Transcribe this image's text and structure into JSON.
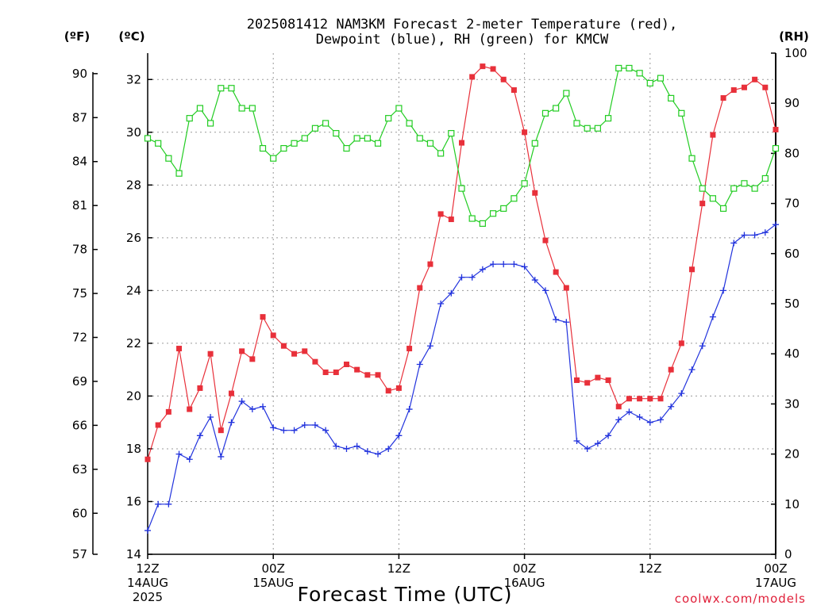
{
  "chart_data": {
    "type": "line",
    "title": [
      "2025081412 NAM3KM Forecast 2-meter Temperature (red),",
      "Dewpoint (blue), RH (green) for KMCW"
    ],
    "xlabel": "Forecast Time (UTC)",
    "credit": "coolwx.com/models",
    "units": {
      "fahrenheit": "(ºF)",
      "celsius": "(ºC)",
      "rh": "(RH)"
    },
    "x_ticks": [
      {
        "hour": 0,
        "lines": [
          "12Z",
          "14AUG",
          "2025"
        ]
      },
      {
        "hour": 12,
        "lines": [
          "00Z",
          "15AUG"
        ]
      },
      {
        "hour": 24,
        "lines": [
          "12Z"
        ]
      },
      {
        "hour": 36,
        "lines": [
          "00Z",
          "16AUG"
        ]
      },
      {
        "hour": 48,
        "lines": [
          "12Z"
        ]
      },
      {
        "hour": 60,
        "lines": [
          "00Z",
          "17AUG"
        ]
      }
    ],
    "x_range": [
      0,
      60
    ],
    "y_celsius": {
      "range": [
        14,
        33
      ],
      "ticks": [
        "14",
        "16",
        "18",
        "20",
        "22",
        "24",
        "26",
        "28",
        "30",
        "32"
      ]
    },
    "y_fahrenheit": {
      "ticks": [
        "57",
        "60",
        "63",
        "66",
        "69",
        "72",
        "75",
        "78",
        "81",
        "84",
        "87",
        "90"
      ]
    },
    "y_rh": {
      "range": [
        0,
        100
      ],
      "ticks": [
        "0",
        "10",
        "20",
        "30",
        "40",
        "50",
        "60",
        "70",
        "80",
        "90",
        "100"
      ]
    },
    "grid": true,
    "colors": {
      "temperature": "#e8303a",
      "dewpoint": "#2233dd",
      "rh": "#22cc22"
    },
    "series": [
      {
        "name": "Temperature",
        "axis": "celsius",
        "marker": "filled-square",
        "values": [
          17.6,
          18.9,
          19.4,
          21.8,
          19.5,
          20.3,
          21.6,
          18.7,
          20.1,
          21.7,
          21.4,
          23.0,
          22.3,
          21.9,
          21.6,
          21.7,
          21.3,
          20.9,
          20.9,
          21.2,
          21.0,
          20.8,
          20.8,
          20.2,
          20.3,
          21.8,
          24.1,
          25.0,
          26.9,
          26.7,
          29.6,
          32.1,
          32.5,
          32.4,
          32.0,
          31.6,
          30.0,
          27.7,
          25.9,
          24.7,
          24.1,
          20.6,
          20.5,
          20.7,
          20.6,
          19.6,
          19.9,
          19.9,
          19.9,
          19.9,
          21.0,
          22.0,
          24.8,
          27.3,
          29.9,
          31.3,
          31.6,
          31.7,
          32.0,
          31.7,
          30.1
        ]
      },
      {
        "name": "Dewpoint",
        "axis": "celsius",
        "marker": "plus",
        "values": [
          14.9,
          15.9,
          15.9,
          17.8,
          17.6,
          18.5,
          19.2,
          17.7,
          19.0,
          19.8,
          19.5,
          19.6,
          18.8,
          18.7,
          18.7,
          18.9,
          18.9,
          18.7,
          18.1,
          18.0,
          18.1,
          17.9,
          17.8,
          18.0,
          18.5,
          19.5,
          21.2,
          21.9,
          23.5,
          23.9,
          24.5,
          24.5,
          24.8,
          25.0,
          25.0,
          25.0,
          24.9,
          24.4,
          24.0,
          22.9,
          22.8,
          18.3,
          18.0,
          18.2,
          18.5,
          19.1,
          19.4,
          19.2,
          19.0,
          19.1,
          19.6,
          20.1,
          21.0,
          21.9,
          23.0,
          24.0,
          25.8,
          26.1,
          26.1,
          26.2,
          26.5
        ]
      },
      {
        "name": "RH",
        "axis": "rh",
        "marker": "open-square",
        "values": [
          83,
          82,
          79,
          76,
          87,
          89,
          86,
          93,
          93,
          89,
          89,
          81,
          79,
          81,
          82,
          83,
          85,
          86,
          84,
          81,
          83,
          83,
          82,
          87,
          89,
          86,
          83,
          82,
          80,
          84,
          73,
          67,
          66,
          68,
          69,
          71,
          74,
          82,
          88,
          89,
          92,
          86,
          85,
          85,
          87,
          97,
          97,
          96,
          94,
          95,
          91,
          88,
          79,
          73,
          71,
          69,
          73,
          74,
          73,
          75,
          81
        ]
      }
    ]
  }
}
